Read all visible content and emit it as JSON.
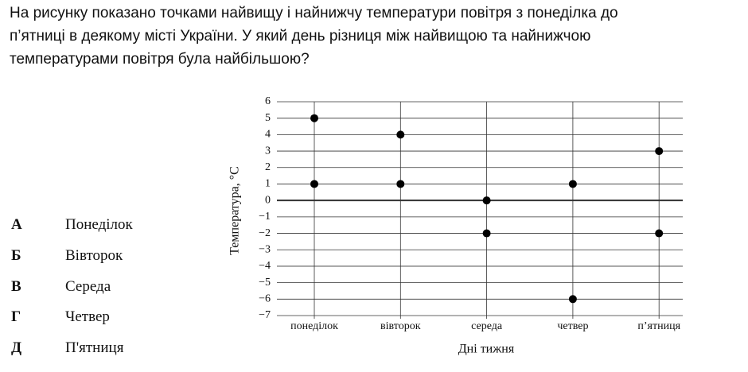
{
  "question": {
    "lines": [
      "На рисунку показано точками найвищу і найнижчу температури повітря з понеділка до",
      "п’ятниці в деякому місті України. У який день різниця між найвищою та найнижчою",
      "температурами повітря була найбільшою?"
    ]
  },
  "options": [
    {
      "letter": "А",
      "text": "Понеділок"
    },
    {
      "letter": "Б",
      "text": "Вівторок"
    },
    {
      "letter": "В",
      "text": "Середа"
    },
    {
      "letter": "Г",
      "text": "Четвер"
    },
    {
      "letter": "Д",
      "text": "П'ятниця"
    }
  ],
  "chart_data": {
    "type": "scatter",
    "x_label": "Дні тижня",
    "y_label": "Температура, °C",
    "categories": [
      "понеділок",
      "вівторок",
      "середа",
      "четвер",
      "п’ятниця"
    ],
    "series": [
      {
        "color": "#000000",
        "values": [
          5,
          4,
          0,
          1,
          3
        ]
      },
      {
        "color": "#000000",
        "values": [
          1,
          1,
          -2,
          -6,
          -2
        ]
      }
    ],
    "ylim": [
      -7,
      6
    ],
    "yticks": [
      {
        "value": -7,
        "label": "−7"
      },
      {
        "value": -6,
        "label": "−6"
      },
      {
        "value": -5,
        "label": "−5"
      },
      {
        "value": -4,
        "label": "−4"
      },
      {
        "value": -3,
        "label": "−3"
      },
      {
        "value": -2,
        "label": "−2"
      },
      {
        "value": -1,
        "label": "−1"
      },
      0,
      1,
      2,
      3,
      4,
      5,
      6
    ],
    "grid": true
  }
}
